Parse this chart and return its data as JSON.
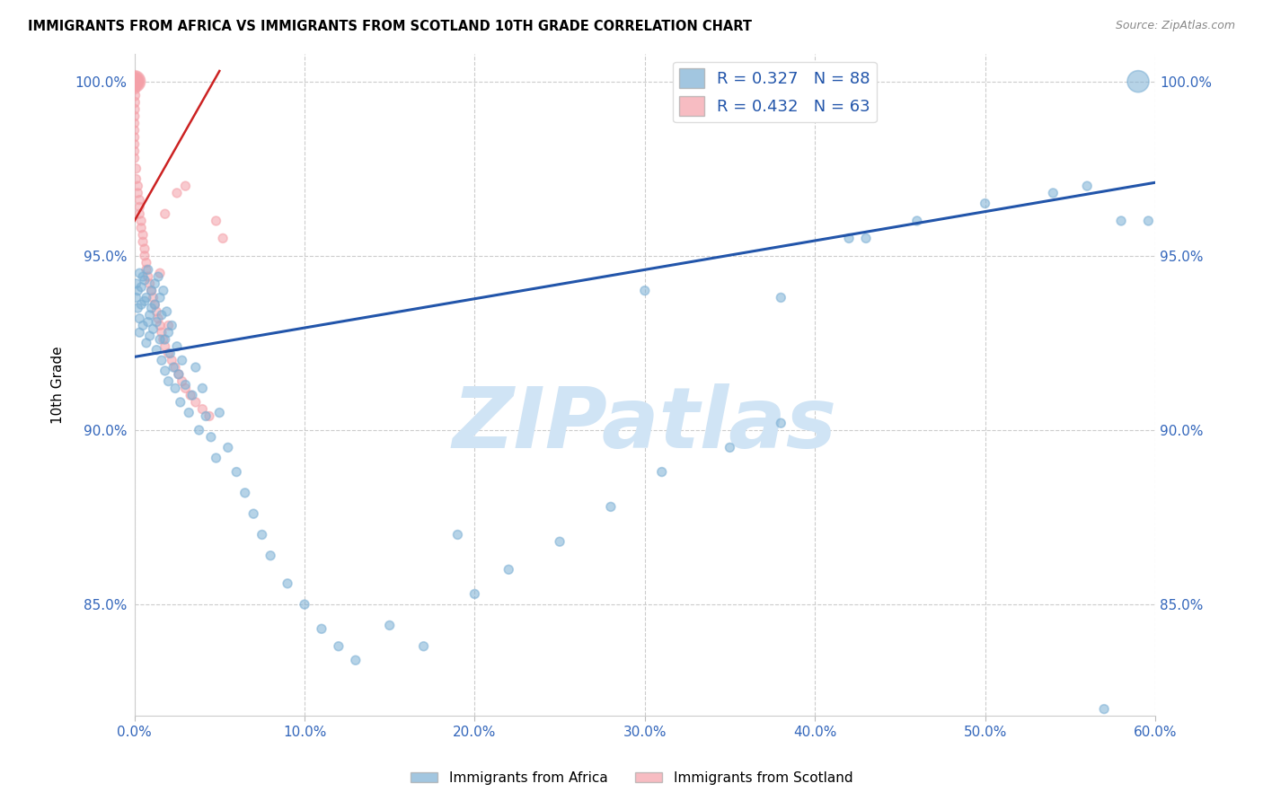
{
  "title": "IMMIGRANTS FROM AFRICA VS IMMIGRANTS FROM SCOTLAND 10TH GRADE CORRELATION CHART",
  "source": "Source: ZipAtlas.com",
  "ylabel": "10th Grade",
  "xlim": [
    0.0,
    0.6
  ],
  "ylim": [
    0.818,
    1.008
  ],
  "xtick_labels": [
    "0.0%",
    "10.0%",
    "20.0%",
    "30.0%",
    "40.0%",
    "50.0%",
    "60.0%"
  ],
  "xtick_values": [
    0.0,
    0.1,
    0.2,
    0.3,
    0.4,
    0.5,
    0.6
  ],
  "ytick_labels": [
    "85.0%",
    "90.0%",
    "95.0%",
    "100.0%"
  ],
  "ytick_values": [
    0.85,
    0.9,
    0.95,
    1.0
  ],
  "r_africa": 0.327,
  "n_africa": 88,
  "r_scotland": 0.432,
  "n_scotland": 63,
  "color_africa": "#7BAFD4",
  "color_scotland": "#F4A0A8",
  "trendline_africa_color": "#2255AA",
  "trendline_scotland_color": "#CC2222",
  "watermark": "ZIPatlas",
  "watermark_color": "#D0E4F5",
  "africa_trendline": [
    0.921,
    0.971
  ],
  "scotland_trendline_x": [
    0.0,
    0.05
  ],
  "scotland_trendline_y": [
    0.96,
    1.003
  ],
  "legend_africa_label": "R = 0.327   N = 88",
  "legend_scotland_label": "R = 0.432   N = 63",
  "bottom_legend_africa": "Immigrants from Africa",
  "bottom_legend_scotland": "Immigrants from Scotland",
  "africa_x": [
    0.001,
    0.001,
    0.002,
    0.002,
    0.003,
    0.003,
    0.003,
    0.004,
    0.004,
    0.005,
    0.005,
    0.006,
    0.006,
    0.007,
    0.007,
    0.008,
    0.008,
    0.009,
    0.009,
    0.01,
    0.01,
    0.011,
    0.012,
    0.012,
    0.013,
    0.013,
    0.014,
    0.015,
    0.015,
    0.016,
    0.016,
    0.017,
    0.018,
    0.018,
    0.019,
    0.02,
    0.02,
    0.021,
    0.022,
    0.023,
    0.024,
    0.025,
    0.026,
    0.027,
    0.028,
    0.03,
    0.032,
    0.034,
    0.036,
    0.038,
    0.04,
    0.042,
    0.045,
    0.048,
    0.05,
    0.055,
    0.06,
    0.065,
    0.07,
    0.075,
    0.08,
    0.09,
    0.1,
    0.11,
    0.12,
    0.13,
    0.15,
    0.17,
    0.19,
    0.2,
    0.22,
    0.25,
    0.28,
    0.31,
    0.35,
    0.38,
    0.42,
    0.46,
    0.5,
    0.54,
    0.56,
    0.57,
    0.58,
    0.59,
    0.596,
    0.3,
    0.43,
    0.38
  ],
  "africa_y": [
    0.938,
    0.942,
    0.935,
    0.94,
    0.932,
    0.945,
    0.928,
    0.936,
    0.941,
    0.93,
    0.944,
    0.937,
    0.943,
    0.925,
    0.938,
    0.931,
    0.946,
    0.933,
    0.927,
    0.94,
    0.935,
    0.929,
    0.942,
    0.936,
    0.923,
    0.931,
    0.944,
    0.926,
    0.938,
    0.92,
    0.933,
    0.94,
    0.926,
    0.917,
    0.934,
    0.928,
    0.914,
    0.922,
    0.93,
    0.918,
    0.912,
    0.924,
    0.916,
    0.908,
    0.92,
    0.913,
    0.905,
    0.91,
    0.918,
    0.9,
    0.912,
    0.904,
    0.898,
    0.892,
    0.905,
    0.895,
    0.888,
    0.882,
    0.876,
    0.87,
    0.864,
    0.856,
    0.85,
    0.843,
    0.838,
    0.834,
    0.844,
    0.838,
    0.87,
    0.853,
    0.86,
    0.868,
    0.878,
    0.888,
    0.895,
    0.902,
    0.955,
    0.96,
    0.965,
    0.968,
    0.97,
    0.82,
    0.96,
    1.0,
    0.96,
    0.94,
    0.955,
    0.938
  ],
  "africa_sizes": [
    50,
    50,
    50,
    50,
    50,
    50,
    50,
    50,
    50,
    50,
    50,
    50,
    50,
    50,
    50,
    50,
    50,
    50,
    50,
    50,
    50,
    50,
    50,
    50,
    50,
    50,
    50,
    50,
    50,
    50,
    50,
    50,
    50,
    50,
    50,
    50,
    50,
    50,
    50,
    50,
    50,
    50,
    50,
    50,
    50,
    50,
    50,
    50,
    50,
    50,
    50,
    50,
    50,
    50,
    50,
    50,
    50,
    50,
    50,
    50,
    50,
    50,
    50,
    50,
    50,
    50,
    50,
    50,
    50,
    50,
    50,
    50,
    50,
    50,
    50,
    50,
    50,
    50,
    50,
    50,
    50,
    50,
    50,
    300,
    50,
    50,
    50,
    50
  ],
  "scotland_x": [
    0.0,
    0.0,
    0.0,
    0.0,
    0.0,
    0.0,
    0.0,
    0.0,
    0.0,
    0.0,
    0.0,
    0.0,
    0.0,
    0.0,
    0.0,
    0.0,
    0.0,
    0.0,
    0.0,
    0.0,
    0.001,
    0.001,
    0.002,
    0.002,
    0.003,
    0.003,
    0.003,
    0.004,
    0.004,
    0.005,
    0.005,
    0.006,
    0.006,
    0.007,
    0.007,
    0.008,
    0.009,
    0.01,
    0.011,
    0.012,
    0.013,
    0.014,
    0.015,
    0.016,
    0.017,
    0.018,
    0.02,
    0.022,
    0.024,
    0.026,
    0.028,
    0.03,
    0.033,
    0.036,
    0.04,
    0.044,
    0.048,
    0.052,
    0.03,
    0.025,
    0.015,
    0.018,
    0.02
  ],
  "scotland_y": [
    1.0,
    1.0,
    1.0,
    1.0,
    1.0,
    1.0,
    1.0,
    1.0,
    1.0,
    0.998,
    0.996,
    0.994,
    0.992,
    0.99,
    0.988,
    0.986,
    0.984,
    0.982,
    0.98,
    0.978,
    0.975,
    0.972,
    0.97,
    0.968,
    0.966,
    0.964,
    0.962,
    0.96,
    0.958,
    0.956,
    0.954,
    0.952,
    0.95,
    0.948,
    0.946,
    0.944,
    0.942,
    0.94,
    0.938,
    0.936,
    0.934,
    0.932,
    0.93,
    0.928,
    0.926,
    0.924,
    0.922,
    0.92,
    0.918,
    0.916,
    0.914,
    0.912,
    0.91,
    0.908,
    0.906,
    0.904,
    0.96,
    0.955,
    0.97,
    0.968,
    0.945,
    0.962,
    0.93
  ],
  "scotland_sizes": [
    300,
    250,
    200,
    180,
    160,
    140,
    120,
    100,
    90,
    80,
    70,
    65,
    60,
    55,
    50,
    50,
    50,
    50,
    50,
    50,
    50,
    50,
    50,
    50,
    50,
    50,
    50,
    50,
    50,
    50,
    50,
    50,
    50,
    50,
    50,
    50,
    50,
    50,
    50,
    50,
    50,
    50,
    50,
    50,
    50,
    50,
    50,
    50,
    50,
    50,
    50,
    50,
    50,
    50,
    50,
    50,
    50,
    50,
    50,
    50,
    50,
    50,
    50
  ]
}
